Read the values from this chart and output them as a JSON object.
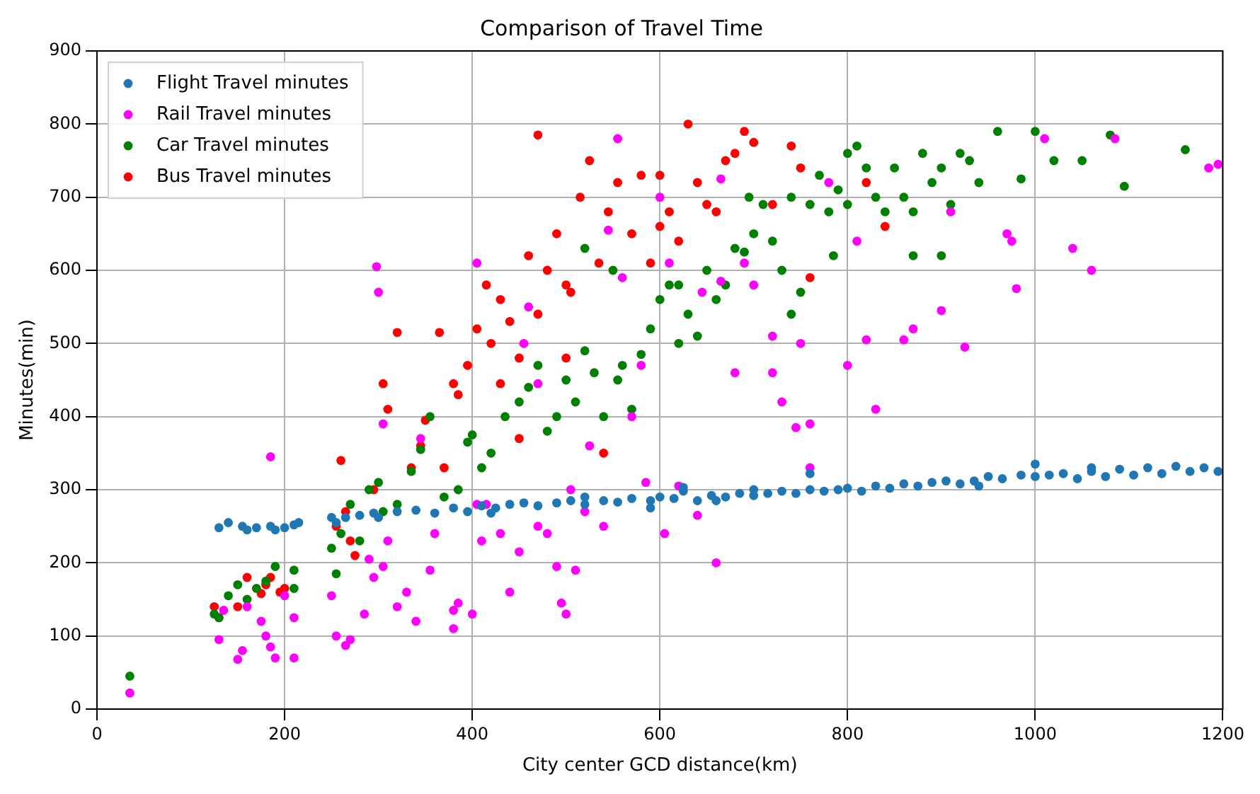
{
  "chart_data": {
    "type": "scatter",
    "title": "Comparison of Travel Time",
    "xlabel": "City center GCD distance(km)",
    "ylabel": "Minutes(min)",
    "xlim": [
      0,
      1200
    ],
    "xticks": [
      0,
      200,
      400,
      600,
      800,
      1000,
      1200
    ],
    "ylim": [
      0,
      900
    ],
    "yticks": [
      0,
      100,
      200,
      300,
      400,
      500,
      600,
      700,
      800,
      900
    ],
    "grid": true,
    "legend": "top left",
    "marker": "circle",
    "series": [
      {
        "name": "Flight Travel minutes",
        "color": "#1f77b4",
        "x": [
          130,
          140,
          155,
          160,
          170,
          185,
          190,
          200,
          210,
          215,
          250,
          255,
          265,
          280,
          295,
          300,
          320,
          340,
          360,
          380,
          395,
          410,
          425,
          440,
          455,
          470,
          490,
          505,
          520,
          540,
          555,
          570,
          590,
          600,
          615,
          625,
          640,
          655,
          670,
          685,
          700,
          715,
          730,
          745,
          760,
          775,
          790,
          800,
          815,
          830,
          845,
          860,
          875,
          890,
          905,
          920,
          935,
          950,
          965,
          985,
          1000,
          1015,
          1030,
          1045,
          1060,
          1075,
          1090,
          1105,
          1120,
          1135,
          1150,
          1165,
          1180,
          1195,
          1000,
          1060,
          940,
          700,
          760,
          625,
          520,
          420,
          590,
          660
        ],
        "values": [
          248,
          255,
          250,
          245,
          248,
          250,
          245,
          248,
          252,
          255,
          262,
          255,
          262,
          265,
          268,
          262,
          270,
          272,
          268,
          275,
          270,
          278,
          275,
          280,
          282,
          278,
          282,
          285,
          280,
          285,
          283,
          288,
          285,
          290,
          288,
          298,
          285,
          292,
          290,
          295,
          292,
          295,
          298,
          295,
          300,
          298,
          300,
          302,
          298,
          305,
          302,
          308,
          305,
          310,
          312,
          308,
          312,
          318,
          315,
          320,
          318,
          320,
          322,
          315,
          325,
          318,
          328,
          320,
          330,
          322,
          332,
          325,
          330,
          325,
          335,
          330,
          305,
          300,
          322,
          303,
          290,
          268,
          275,
          285
        ]
      },
      {
        "name": "Rail Travel minutes",
        "color": "#ff00ff",
        "x": [
          35,
          130,
          135,
          150,
          155,
          160,
          175,
          180,
          185,
          185,
          190,
          200,
          210,
          210,
          250,
          255,
          265,
          270,
          285,
          290,
          295,
          298,
          300,
          305,
          305,
          310,
          320,
          330,
          340,
          345,
          355,
          360,
          380,
          380,
          385,
          400,
          405,
          410,
          415,
          430,
          440,
          450,
          455,
          460,
          470,
          480,
          490,
          495,
          500,
          505,
          510,
          520,
          525,
          540,
          545,
          555,
          560,
          570,
          585,
          600,
          605,
          610,
          620,
          640,
          660,
          665,
          680,
          690,
          700,
          720,
          730,
          745,
          750,
          760,
          780,
          800,
          810,
          820,
          830,
          860,
          870,
          900,
          910,
          925,
          970,
          975,
          980,
          1010,
          1040,
          1060,
          1085,
          1185,
          1195,
          760,
          665,
          580,
          645,
          720,
          470,
          405
        ],
        "values": [
          22,
          95,
          135,
          68,
          80,
          140,
          120,
          100,
          345,
          85,
          70,
          155,
          125,
          70,
          155,
          100,
          87,
          95,
          130,
          205,
          180,
          605,
          570,
          195,
          390,
          230,
          140,
          160,
          120,
          370,
          190,
          240,
          110,
          135,
          145,
          130,
          610,
          230,
          280,
          240,
          160,
          215,
          500,
          550,
          250,
          240,
          195,
          145,
          130,
          300,
          190,
          270,
          360,
          250,
          655,
          780,
          590,
          400,
          310,
          700,
          240,
          610,
          305,
          265,
          200,
          585,
          460,
          610,
          580,
          510,
          420,
          385,
          500,
          390,
          720,
          470,
          640,
          505,
          410,
          505,
          520,
          545,
          680,
          495,
          650,
          640,
          575,
          780,
          630,
          600,
          780,
          740,
          745,
          330,
          725,
          470,
          570,
          460,
          445,
          280
        ]
      },
      {
        "name": "Car Travel minutes",
        "color": "#008000",
        "x": [
          35,
          125,
          130,
          140,
          150,
          160,
          170,
          180,
          190,
          210,
          210,
          250,
          255,
          260,
          270,
          280,
          290,
          300,
          305,
          320,
          335,
          345,
          355,
          370,
          385,
          395,
          400,
          410,
          420,
          435,
          450,
          460,
          470,
          480,
          490,
          500,
          510,
          520,
          530,
          540,
          555,
          560,
          570,
          580,
          590,
          600,
          610,
          620,
          630,
          640,
          650,
          660,
          670,
          680,
          690,
          700,
          710,
          720,
          730,
          740,
          750,
          760,
          770,
          780,
          790,
          800,
          810,
          820,
          830,
          840,
          850,
          860,
          870,
          880,
          890,
          900,
          910,
          920,
          930,
          940,
          960,
          985,
          1000,
          1020,
          1050,
          1080,
          1095,
          1160,
          900,
          870,
          740,
          620,
          550,
          520,
          785,
          695,
          800
        ],
        "values": [
          45,
          130,
          125,
          155,
          170,
          150,
          165,
          175,
          195,
          190,
          165,
          220,
          185,
          240,
          280,
          230,
          300,
          310,
          270,
          280,
          325,
          355,
          400,
          290,
          300,
          365,
          375,
          330,
          350,
          400,
          420,
          440,
          470,
          380,
          400,
          450,
          420,
          490,
          460,
          400,
          450,
          470,
          410,
          485,
          520,
          560,
          580,
          500,
          540,
          510,
          600,
          560,
          580,
          630,
          625,
          650,
          690,
          640,
          600,
          700,
          570,
          690,
          730,
          680,
          710,
          690,
          770,
          740,
          700,
          680,
          740,
          700,
          680,
          760,
          720,
          740,
          690,
          760,
          750,
          720,
          790,
          725,
          790,
          750,
          750,
          785,
          715,
          765,
          620,
          620,
          540,
          580,
          600,
          630,
          620,
          700,
          760
        ]
      },
      {
        "name": "Bus Travel minutes",
        "color": "#ff0000",
        "x": [
          125,
          130,
          150,
          160,
          175,
          180,
          185,
          195,
          200,
          255,
          260,
          265,
          270,
          275,
          295,
          305,
          310,
          320,
          335,
          345,
          350,
          365,
          370,
          380,
          385,
          395,
          405,
          415,
          420,
          430,
          440,
          450,
          460,
          470,
          480,
          490,
          500,
          505,
          515,
          525,
          535,
          545,
          555,
          570,
          580,
          590,
          600,
          610,
          620,
          630,
          640,
          650,
          660,
          670,
          680,
          690,
          700,
          720,
          740,
          750,
          760,
          820,
          840,
          470,
          500,
          540,
          450,
          430,
          600
        ],
        "values": [
          140,
          125,
          140,
          180,
          158,
          170,
          180,
          160,
          165,
          250,
          340,
          270,
          230,
          210,
          300,
          445,
          410,
          515,
          330,
          360,
          395,
          515,
          330,
          445,
          430,
          470,
          520,
          580,
          500,
          560,
          530,
          480,
          620,
          540,
          600,
          650,
          480,
          570,
          700,
          750,
          610,
          680,
          720,
          650,
          730,
          610,
          660,
          680,
          640,
          800,
          720,
          690,
          680,
          750,
          760,
          790,
          775,
          690,
          770,
          740,
          590,
          720,
          660,
          785,
          580,
          350,
          370,
          445,
          730
        ]
      }
    ]
  }
}
